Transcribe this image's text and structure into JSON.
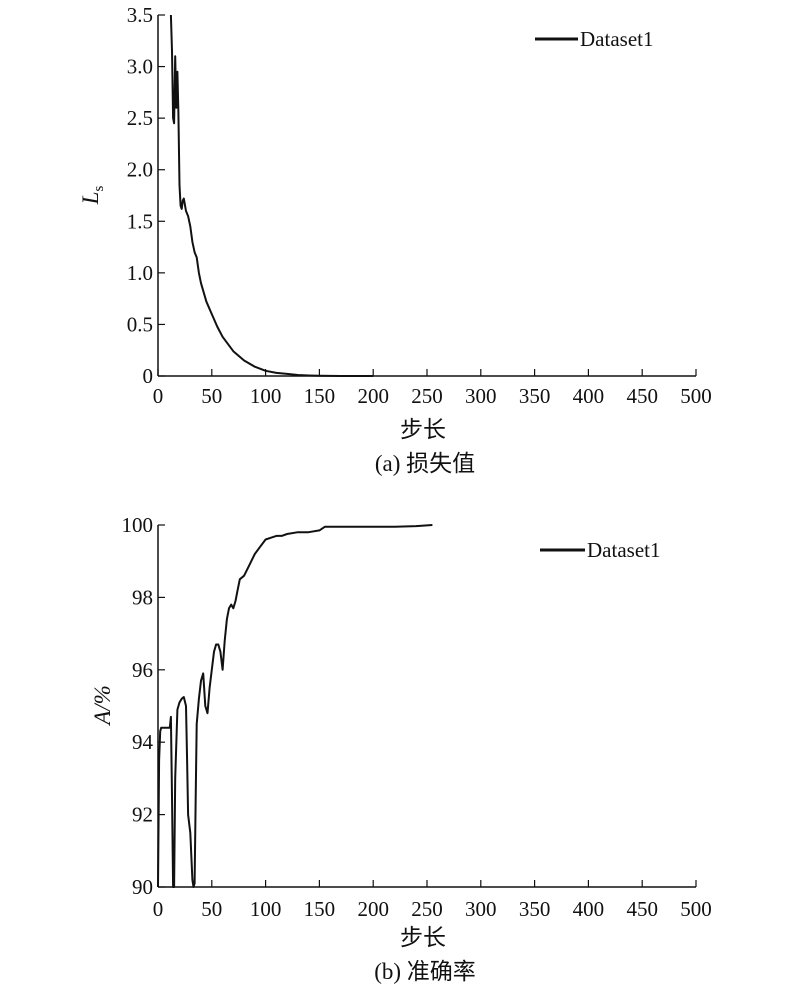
{
  "chart_data": [
    {
      "type": "line",
      "caption": "(a) 损失值",
      "xlabel": "步长",
      "ylabel": "L",
      "ylabel_sub": "s",
      "xlim": [
        0,
        500
      ],
      "ylim": [
        0,
        3.5
      ],
      "x_ticks": [
        "0",
        "50",
        "100",
        "150",
        "200",
        "250",
        "300",
        "350",
        "400",
        "450",
        "500"
      ],
      "y_ticks": [
        "0",
        "0.5",
        "1.0",
        "1.5",
        "2.0",
        "2.5",
        "3.0",
        "3.5"
      ],
      "grid": false,
      "legend_position": "top-right",
      "series": [
        {
          "name": "Dataset1",
          "color": "#111111",
          "x": [
            12,
            13,
            14,
            15,
            16,
            17,
            18,
            19,
            20,
            21,
            22,
            23,
            24,
            26,
            28,
            30,
            32,
            34,
            36,
            38,
            40,
            45,
            50,
            55,
            60,
            70,
            80,
            90,
            100,
            110,
            120,
            130,
            140,
            150,
            160,
            170,
            180,
            190,
            200
          ],
          "y": [
            3.5,
            3.15,
            2.5,
            2.45,
            3.1,
            2.6,
            2.95,
            2.55,
            1.85,
            1.65,
            1.62,
            1.7,
            1.72,
            1.6,
            1.55,
            1.45,
            1.3,
            1.2,
            1.15,
            1.0,
            0.9,
            0.72,
            0.6,
            0.48,
            0.38,
            0.24,
            0.15,
            0.09,
            0.05,
            0.03,
            0.02,
            0.01,
            0.005,
            0.002,
            0.001,
            0.0,
            0.0,
            0.0,
            0.0
          ]
        }
      ]
    },
    {
      "type": "line",
      "caption": "(b) 准确率",
      "xlabel": "步长",
      "ylabel": "A/%",
      "ylabel_sub": "",
      "xlim": [
        0,
        500
      ],
      "ylim": [
        90,
        100
      ],
      "x_ticks": [
        "0",
        "50",
        "100",
        "150",
        "200",
        "250",
        "300",
        "350",
        "400",
        "450",
        "500"
      ],
      "y_ticks": [
        "90",
        "92",
        "94",
        "96",
        "98",
        "100"
      ],
      "grid": false,
      "legend_position": "top-right",
      "series": [
        {
          "name": "Dataset1",
          "color": "#111111",
          "x": [
            0,
            1,
            2,
            3,
            5,
            8,
            11,
            12,
            13,
            14,
            15,
            16,
            18,
            20,
            22,
            24,
            26,
            27,
            28,
            30,
            32,
            33,
            34,
            35,
            36,
            38,
            40,
            42,
            44,
            46,
            48,
            50,
            52,
            54,
            56,
            58,
            60,
            62,
            64,
            66,
            68,
            70,
            72,
            74,
            76,
            80,
            85,
            90,
            95,
            100,
            105,
            110,
            115,
            120,
            130,
            140,
            150,
            155,
            160,
            180,
            200,
            220,
            240,
            255
          ],
          "y": [
            90.0,
            93.5,
            94.3,
            94.4,
            94.4,
            94.4,
            94.4,
            94.7,
            92.5,
            90.0,
            90.0,
            93.0,
            94.9,
            95.1,
            95.2,
            95.25,
            95.0,
            93.5,
            92.0,
            91.5,
            90.2,
            90.0,
            90.1,
            92.5,
            94.5,
            95.2,
            95.7,
            95.9,
            95.0,
            94.8,
            95.5,
            96.0,
            96.5,
            96.7,
            96.7,
            96.5,
            96.0,
            96.8,
            97.4,
            97.7,
            97.8,
            97.7,
            97.9,
            98.2,
            98.5,
            98.6,
            98.9,
            99.2,
            99.4,
            99.6,
            99.65,
            99.7,
            99.7,
            99.75,
            99.8,
            99.8,
            99.85,
            99.95,
            99.95,
            99.95,
            99.95,
            99.95,
            99.97,
            100.0
          ]
        }
      ]
    }
  ]
}
